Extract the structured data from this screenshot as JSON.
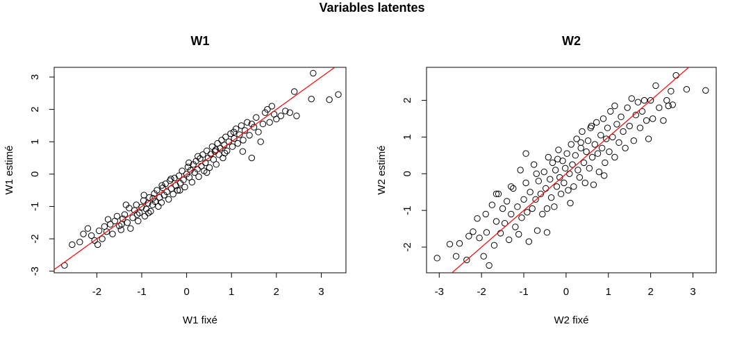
{
  "page_title": "Variables latentes",
  "chart_data": [
    {
      "type": "scatter",
      "title": "W1",
      "xlabel": "W1 fixé",
      "ylabel": "W1 estimé",
      "xlim": [
        -2.95,
        3.55
      ],
      "ylim": [
        -3.05,
        3.3
      ],
      "xticks": [
        -2,
        -1,
        0,
        1,
        2,
        3
      ],
      "yticks": [
        -3,
        -2,
        -1,
        0,
        1,
        2,
        3
      ],
      "xtick_labels": [
        "-2",
        "-1",
        "0",
        "1",
        "2",
        "3"
      ],
      "ytick_labels": [
        "-3",
        "-2",
        "-1",
        "0",
        "1",
        "2",
        "3"
      ],
      "grid": false,
      "marker": "open-circle",
      "point_color": "#000000",
      "reference_line": {
        "intercept": 0,
        "slope": 1,
        "color": "#ff0000"
      },
      "points": [
        [
          -2.72,
          -2.82
        ],
        [
          -2.55,
          -2.18
        ],
        [
          -2.38,
          -2.1
        ],
        [
          -2.3,
          -1.85
        ],
        [
          -2.2,
          -1.68
        ],
        [
          -2.12,
          -1.9
        ],
        [
          -2.05,
          -2.05
        ],
        [
          -1.98,
          -2.18
        ],
        [
          -1.95,
          -1.75
        ],
        [
          -1.88,
          -2.0
        ],
        [
          -1.83,
          -1.62
        ],
        [
          -1.78,
          -1.78
        ],
        [
          -1.7,
          -1.55
        ],
        [
          -1.65,
          -1.85
        ],
        [
          -1.6,
          -1.45
        ],
        [
          -1.55,
          -1.3
        ],
        [
          -1.5,
          -1.6
        ],
        [
          -1.46,
          -1.72
        ],
        [
          -1.42,
          -1.38
        ],
        [
          -1.38,
          -1.25
        ],
        [
          -1.32,
          -1.5
        ],
        [
          -1.28,
          -1.05
        ],
        [
          -1.25,
          -1.68
        ],
        [
          -1.2,
          -1.35
        ],
        [
          -1.16,
          -1.12
        ],
        [
          -1.12,
          -0.95
        ],
        [
          -1.08,
          -1.45
        ],
        [
          -1.05,
          -1.2
        ],
        [
          -1.0,
          -1.02
        ],
        [
          -0.96,
          -0.82
        ],
        [
          -0.93,
          -1.3
        ],
        [
          -0.9,
          -1.08
        ],
        [
          -0.86,
          -0.9
        ],
        [
          -0.83,
          -0.72
        ],
        [
          -0.8,
          -1.15
        ],
        [
          -0.76,
          -0.95
        ],
        [
          -0.72,
          -0.6
        ],
        [
          -0.7,
          -0.85
        ],
        [
          -0.66,
          -0.5
        ],
        [
          -0.63,
          -1.0
        ],
        [
          -0.6,
          -0.72
        ],
        [
          -0.56,
          -0.88
        ],
        [
          -0.53,
          -0.42
        ],
        [
          -0.5,
          -0.65
        ],
        [
          -0.47,
          -0.3
        ],
        [
          -0.44,
          -0.55
        ],
        [
          -0.4,
          -0.78
        ],
        [
          -0.37,
          -0.2
        ],
        [
          -0.34,
          -0.45
        ],
        [
          -0.3,
          -0.62
        ],
        [
          -0.27,
          -0.12
        ],
        [
          -0.24,
          -0.35
        ],
        [
          -0.2,
          -0.5
        ],
        [
          -0.17,
          -0.05
        ],
        [
          -0.14,
          -0.28
        ],
        [
          -0.1,
          0.1
        ],
        [
          -0.07,
          -0.18
        ],
        [
          -0.04,
          -0.4
        ],
        [
          0.0,
          0.0
        ],
        [
          0.03,
          0.22
        ],
        [
          0.06,
          -0.1
        ],
        [
          0.09,
          0.12
        ],
        [
          0.12,
          -0.25
        ],
        [
          0.15,
          0.3
        ],
        [
          0.18,
          0.05
        ],
        [
          0.21,
          0.4
        ],
        [
          0.24,
          0.15
        ],
        [
          0.27,
          -0.08
        ],
        [
          0.3,
          0.48
        ],
        [
          0.33,
          0.25
        ],
        [
          0.36,
          0.6
        ],
        [
          0.39,
          0.1
        ],
        [
          0.42,
          0.35
        ],
        [
          0.45,
          0.72
        ],
        [
          0.48,
          0.5
        ],
        [
          0.51,
          0.2
        ],
        [
          0.54,
          0.62
        ],
        [
          0.57,
          0.85
        ],
        [
          0.6,
          0.45
        ],
        [
          0.63,
          0.7
        ],
        [
          0.66,
          0.3
        ],
        [
          0.69,
          0.95
        ],
        [
          0.72,
          0.6
        ],
        [
          0.75,
          0.8
        ],
        [
          0.78,
          1.05
        ],
        [
          0.81,
          0.5
        ],
        [
          0.84,
          0.9
        ],
        [
          0.87,
          1.15
        ],
        [
          0.9,
          0.72
        ],
        [
          0.94,
          1.0
        ],
        [
          0.98,
          1.25
        ],
        [
          1.02,
          0.85
        ],
        [
          1.06,
          1.1
        ],
        [
          1.1,
          1.4
        ],
        [
          1.14,
          0.95
        ],
        [
          1.18,
          1.22
        ],
        [
          1.22,
          1.5
        ],
        [
          1.26,
          1.05
        ],
        [
          1.3,
          1.35
        ],
        [
          1.35,
          1.6
        ],
        [
          1.4,
          1.2
        ],
        [
          1.45,
          0.5
        ],
        [
          1.5,
          1.45
        ],
        [
          1.55,
          1.75
        ],
        [
          1.6,
          1.3
        ],
        [
          1.65,
          1.0
        ],
        [
          1.7,
          1.55
        ],
        [
          1.75,
          1.9
        ],
        [
          1.8,
          2.0
        ],
        [
          1.85,
          1.6
        ],
        [
          1.9,
          2.1
        ],
        [
          1.95,
          1.85
        ],
        [
          2.0,
          1.7
        ],
        [
          2.1,
          1.8
        ],
        [
          2.2,
          1.95
        ],
        [
          2.3,
          1.9
        ],
        [
          2.4,
          2.55
        ],
        [
          2.45,
          1.8
        ],
        [
          2.78,
          2.32
        ],
        [
          2.82,
          3.12
        ],
        [
          3.18,
          2.3
        ],
        [
          3.38,
          2.46
        ],
        [
          -1.45,
          -1.55
        ],
        [
          -1.1,
          -1.25
        ],
        [
          -0.95,
          -0.65
        ],
        [
          -0.75,
          -0.75
        ],
        [
          -0.55,
          -0.35
        ],
        [
          -0.35,
          -0.15
        ],
        [
          -0.15,
          -0.5
        ],
        [
          0.05,
          0.35
        ],
        [
          0.25,
          0.55
        ],
        [
          0.45,
          0.05
        ],
        [
          0.65,
          0.75
        ],
        [
          0.85,
          0.65
        ],
        [
          1.05,
          1.3
        ],
        [
          1.25,
          0.7
        ],
        [
          1.45,
          1.55
        ],
        [
          -1.75,
          -1.4
        ],
        [
          -1.35,
          -0.95
        ],
        [
          -0.85,
          -1.2
        ]
      ]
    },
    {
      "type": "scatter",
      "title": "W2",
      "xlabel": "W2 fixé",
      "ylabel": "W2 estimé",
      "xlim": [
        -3.3,
        3.55
      ],
      "ylim": [
        -2.7,
        2.9
      ],
      "xticks": [
        -3,
        -2,
        -1,
        0,
        1,
        2,
        3
      ],
      "yticks": [
        -2,
        -1,
        0,
        1,
        2
      ],
      "xtick_labels": [
        "-3",
        "-2",
        "-1",
        "0",
        "1",
        "2",
        "3"
      ],
      "ytick_labels": [
        "-2",
        "-1",
        "0",
        "1",
        "2"
      ],
      "grid": false,
      "marker": "open-circle",
      "point_color": "#000000",
      "reference_line": {
        "intercept": 0,
        "slope": 1,
        "color": "#ff0000"
      },
      "points": [
        [
          -3.05,
          -2.3
        ],
        [
          -2.75,
          -1.92
        ],
        [
          -2.6,
          -2.25
        ],
        [
          -2.52,
          -1.9
        ],
        [
          -2.35,
          -2.35
        ],
        [
          -2.2,
          -1.58
        ],
        [
          -2.1,
          -1.22
        ],
        [
          -2.05,
          -1.75
        ],
        [
          -1.95,
          -2.25
        ],
        [
          -1.88,
          -1.6
        ],
        [
          -1.82,
          -2.5
        ],
        [
          -1.75,
          -0.85
        ],
        [
          -1.7,
          -1.95
        ],
        [
          -1.65,
          -1.3
        ],
        [
          -1.6,
          -0.55
        ],
        [
          -1.55,
          -1.62
        ],
        [
          -1.5,
          -0.95
        ],
        [
          -1.45,
          -1.35
        ],
        [
          -1.4,
          -0.75
        ],
        [
          -1.35,
          -1.8
        ],
        [
          -1.3,
          -1.1
        ],
        [
          -1.25,
          -0.4
        ],
        [
          -1.2,
          -1.45
        ],
        [
          -1.15,
          -0.9
        ],
        [
          -1.12,
          -1.65
        ],
        [
          -1.08,
          0.1
        ],
        [
          -1.05,
          -1.2
        ],
        [
          -1.0,
          -0.7
        ],
        [
          -0.95,
          -0.25
        ],
        [
          -0.92,
          -1.05
        ],
        [
          -0.88,
          -1.85
        ],
        [
          -0.85,
          -0.5
        ],
        [
          -0.8,
          -0.95
        ],
        [
          -0.76,
          0.25
        ],
        [
          -0.72,
          -0.7
        ],
        [
          -0.68,
          -1.55
        ],
        [
          -0.65,
          -0.2
        ],
        [
          -0.6,
          -0.55
        ],
        [
          -0.56,
          -1.1
        ],
        [
          -0.52,
          0.05
        ],
        [
          -0.48,
          -0.4
        ],
        [
          -0.45,
          -1.6
        ],
        [
          -0.42,
          0.45
        ],
        [
          -0.38,
          -0.15
        ],
        [
          -0.35,
          -0.65
        ],
        [
          -0.32,
          0.3
        ],
        [
          -0.28,
          -0.9
        ],
        [
          -0.25,
          0.1
        ],
        [
          -0.22,
          -0.35
        ],
        [
          -0.18,
          0.65
        ],
        [
          -0.15,
          -0.1
        ],
        [
          -0.12,
          -0.55
        ],
        [
          -0.08,
          0.35
        ],
        [
          -0.05,
          -0.25
        ],
        [
          -0.02,
          0.15
        ],
        [
          0.02,
          0.55
        ],
        [
          0.05,
          -0.45
        ],
        [
          0.08,
          0.0
        ],
        [
          0.12,
          0.8
        ],
        [
          0.15,
          0.25
        ],
        [
          0.18,
          -0.35
        ],
        [
          0.22,
          0.5
        ],
        [
          0.25,
          0.95
        ],
        [
          0.28,
          0.1
        ],
        [
          0.32,
          -0.1
        ],
        [
          0.35,
          0.7
        ],
        [
          0.38,
          1.15
        ],
        [
          0.42,
          0.3
        ],
        [
          0.45,
          -0.25
        ],
        [
          0.48,
          0.6
        ],
        [
          0.52,
          0.9
        ],
        [
          0.55,
          0.15
        ],
        [
          0.58,
          1.25
        ],
        [
          0.62,
          0.45
        ],
        [
          0.65,
          -0.3
        ],
        [
          0.68,
          0.8
        ],
        [
          0.72,
          1.4
        ],
        [
          0.75,
          0.55
        ],
        [
          0.78,
          0.05
        ],
        [
          0.82,
          1.05
        ],
        [
          0.85,
          0.7
        ],
        [
          0.88,
          1.5
        ],
        [
          0.92,
          0.3
        ],
        [
          0.95,
          0.95
        ],
        [
          0.98,
          1.25
        ],
        [
          1.02,
          0.6
        ],
        [
          1.05,
          1.7
        ],
        [
          1.1,
          1.0
        ],
        [
          1.15,
          0.45
        ],
        [
          1.2,
          1.35
        ],
        [
          1.25,
          0.85
        ],
        [
          1.3,
          1.55
        ],
        [
          1.35,
          1.15
        ],
        [
          1.4,
          0.7
        ],
        [
          1.45,
          1.8
        ],
        [
          1.5,
          1.3
        ],
        [
          1.55,
          2.05
        ],
        [
          1.6,
          0.9
        ],
        [
          1.65,
          1.6
        ],
        [
          1.7,
          1.95
        ],
        [
          1.75,
          1.25
        ],
        [
          1.8,
          1.7
        ],
        [
          1.85,
          2.0
        ],
        [
          1.9,
          1.45
        ],
        [
          1.95,
          0.95
        ],
        [
          2.0,
          2.0
        ],
        [
          2.05,
          1.5
        ],
        [
          2.12,
          2.4
        ],
        [
          2.2,
          1.8
        ],
        [
          2.3,
          1.45
        ],
        [
          2.38,
          2.0
        ],
        [
          2.42,
          1.85
        ],
        [
          2.48,
          2.25
        ],
        [
          2.52,
          1.88
        ],
        [
          2.6,
          2.68
        ],
        [
          2.85,
          2.3
        ],
        [
          3.3,
          2.27
        ],
        [
          -2.3,
          -1.7
        ],
        [
          -1.9,
          -1.1
        ],
        [
          -1.65,
          -0.55
        ],
        [
          -1.3,
          -0.35
        ],
        [
          -0.95,
          0.55
        ],
        [
          -0.7,
          0.0
        ],
        [
          -0.45,
          -0.95
        ],
        [
          -0.2,
          0.4
        ],
        [
          0.1,
          -0.8
        ],
        [
          0.35,
          0.85
        ],
        [
          0.6,
          1.3
        ],
        [
          0.9,
          -0.05
        ],
        [
          1.15,
          1.85
        ]
      ]
    }
  ]
}
